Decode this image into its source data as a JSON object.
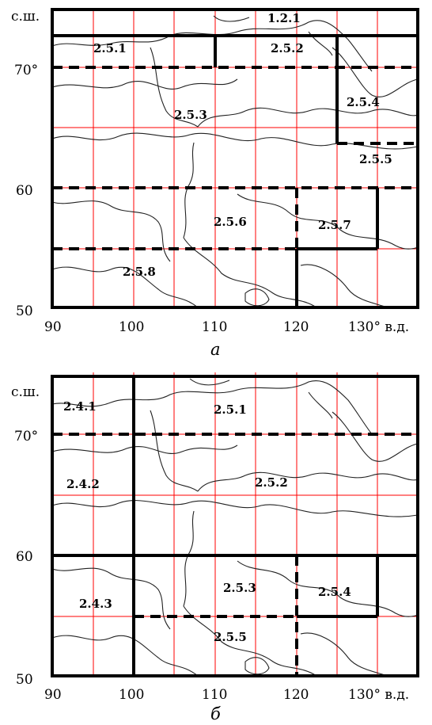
{
  "panels": [
    {
      "caption": "а",
      "lat_label": "с.ш.",
      "lat_ticks": [
        "70°",
        "60",
        "50"
      ],
      "lon_ticks": [
        "90",
        "100",
        "110",
        "120",
        "130° в.д."
      ],
      "zones": [
        "1.2.1",
        "2.5.1",
        "2.5.2",
        "2.5.3",
        "2.5.4",
        "2.5.5",
        "2.5.6",
        "2.5.7",
        "2.5.8"
      ]
    },
    {
      "caption": "б",
      "lat_label": "с.ш.",
      "lat_ticks": [
        "70°",
        "60",
        "50"
      ],
      "lon_ticks": [
        "90",
        "100",
        "110",
        "120",
        "130° в.д."
      ],
      "zones": [
        "2.4.1",
        "2.5.1",
        "2.4.2",
        "2.5.2",
        "2.4.3",
        "2.5.3",
        "2.5.4",
        "2.5.5"
      ]
    }
  ]
}
